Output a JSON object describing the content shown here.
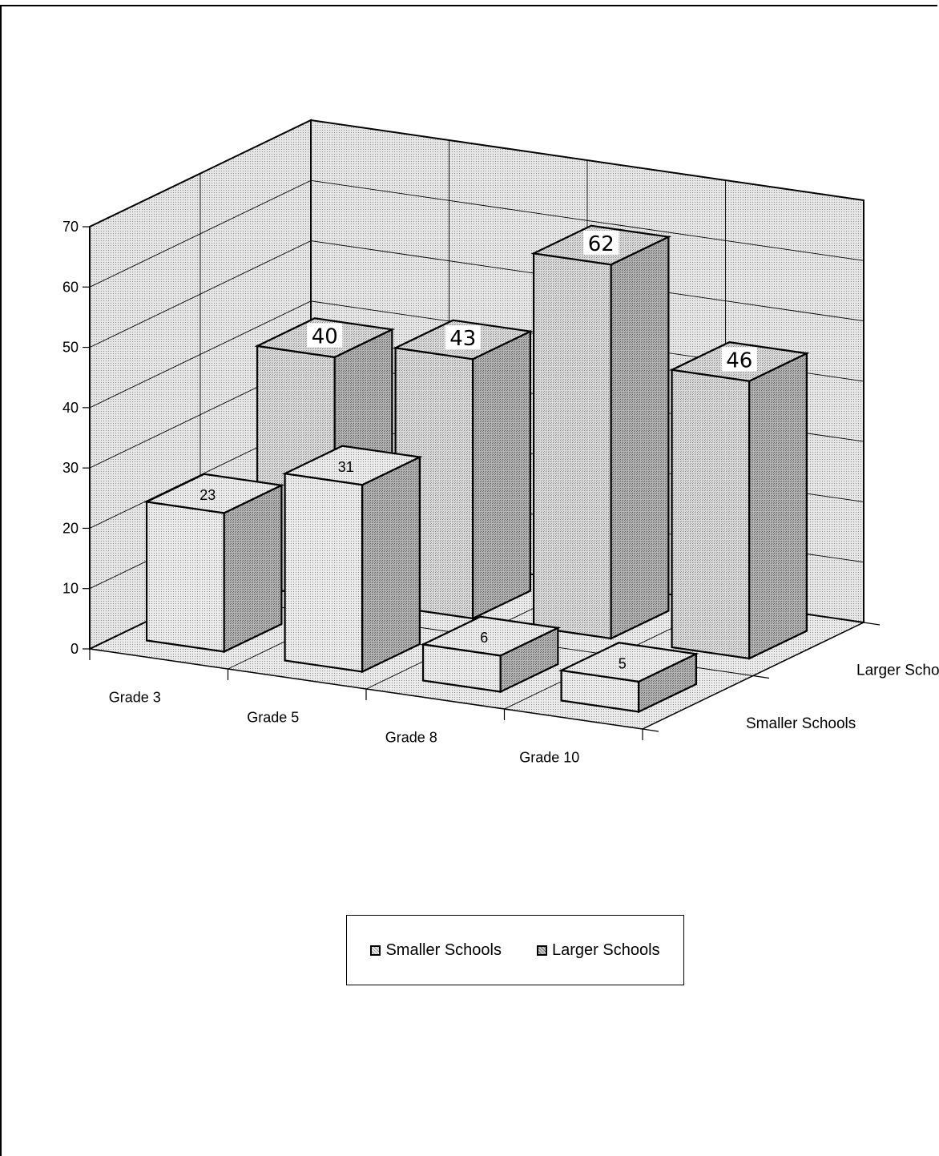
{
  "chart_data": {
    "type": "bar",
    "categories": [
      "Grade 3",
      "Grade 5",
      "Grade 8",
      "Grade 10"
    ],
    "series": [
      {
        "name": "Smaller Schools",
        "values": [
          23,
          31,
          6,
          5
        ]
      },
      {
        "name": "Larger Schools",
        "values": [
          40,
          43,
          62,
          46
        ]
      }
    ],
    "series_axis_labels": [
      "Smaller Schools",
      "Larger Schools"
    ],
    "yticks": [
      0,
      10,
      20,
      30,
      40,
      50,
      60,
      70
    ],
    "ylim": [
      0,
      70
    ],
    "grid": true,
    "legend_position": "bottom-center",
    "colors": {
      "smaller": "#e4e4e4",
      "larger": "#c6c6c6",
      "floor": "#d8d8d8",
      "wall": "#dedede"
    }
  },
  "legend": {
    "items": [
      "Smaller Schools",
      "Larger Schools"
    ]
  }
}
